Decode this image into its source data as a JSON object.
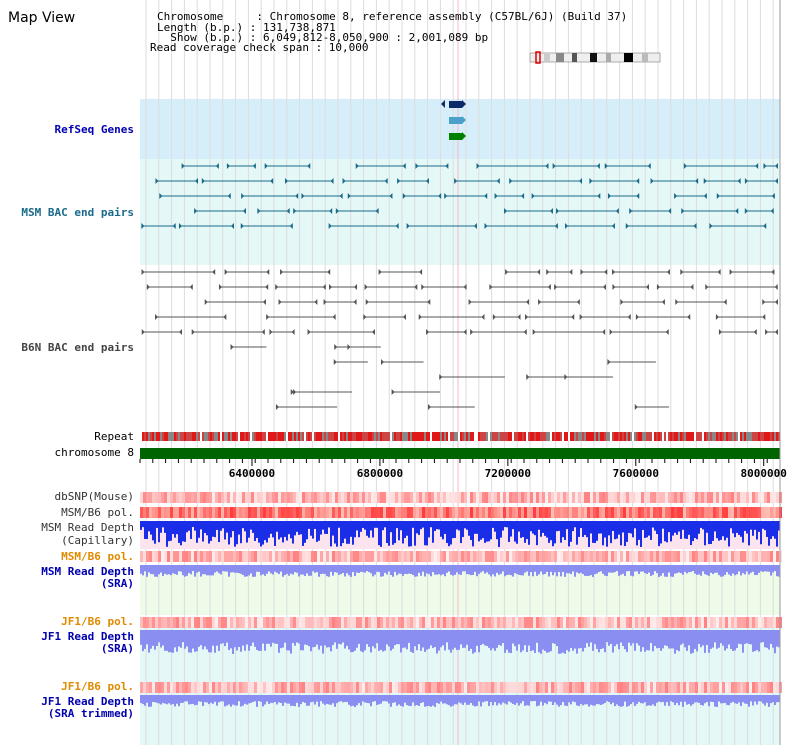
{
  "map_view": {
    "title": "Map View",
    "header": {
      "line1": "Chromosome     : Chromosome 8, reference assembly (C57BL/6J) (Build 37)",
      "line2": "Length (b.p.) : 131,738,871",
      "line3": "  Show (b.p.) : 6,049,812-8,050,900 : 2,001,089 bp",
      "line4": "Read coverage check span : 10,000"
    },
    "range": {
      "start": 6049812,
      "end": 8050900
    },
    "axis_ticks": [
      "6400000",
      "6800000",
      "7200000",
      "7600000",
      "8000000"
    ],
    "axis_tick_values": [
      6400000,
      6800000,
      7200000,
      7600000,
      8000000
    ],
    "tracks": {
      "refseq": {
        "label": "RefSeq Genes",
        "color": "#0000c0"
      },
      "msm_bac": {
        "label": "MSM BAC end pairs",
        "color": "#1a6a8a"
      },
      "b6n_bac": {
        "label": "B6N BAC end pairs",
        "color": "#444444"
      },
      "repeat": {
        "label": "Repeat"
      },
      "chromosome": {
        "label": "chromosome 8"
      },
      "dbsnp": {
        "label": "dbSNP(Mouse)"
      },
      "msm_b6_pol_cap": {
        "label": "MSM/B6 pol."
      },
      "msm_read_depth_cap": {
        "label1": "MSM Read Depth",
        "label2": "(Capillary)"
      },
      "msm_b6_pol_sra": {
        "label": "MSM/B6 pol."
      },
      "msm_read_depth_sra": {
        "label1": "MSM Read Depth",
        "label2": "(SRA)"
      },
      "jf1_b6_pol": {
        "label": "JF1/B6 pol."
      },
      "jf1_read_depth_sra": {
        "label1": "JF1 Read Depth",
        "label2": "(SRA)"
      },
      "jf1_b6_pol_trim": {
        "label": "JF1/B6 pol."
      },
      "jf1_read_depth_trim": {
        "label1": "JF1 Read Depth",
        "label2": "(SRA trimmed)"
      }
    },
    "colors": {
      "navy_label": "#0000b0",
      "teal_label": "#1a6a8a",
      "orange_label": "#e08a00",
      "blue_depth": "#1a2ee8",
      "light_blue_depth": "#8a8ef0",
      "refseq_bg": "#d6eefa",
      "bac_bg": "#e4f8f8",
      "sra_bg": "#eefbe8",
      "chrom_green": "#006400"
    }
  }
}
